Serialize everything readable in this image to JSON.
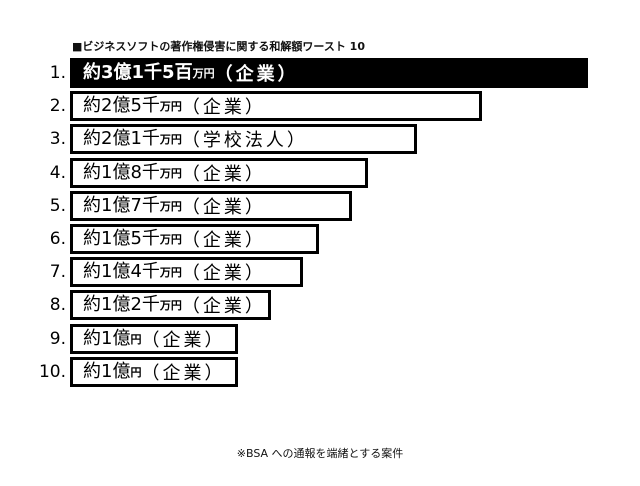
{
  "chart_data": {
    "type": "bar",
    "orientation": "horizontal",
    "title": "■ビジネスソフトの著作権侵害に関する和解額ワースト 10",
    "footnote": "※BSA への通報を端緒とする案件",
    "unit": "万円",
    "ranks": [
      "1.",
      "2.",
      "3.",
      "4.",
      "5.",
      "6.",
      "7.",
      "8.",
      "9.",
      "10."
    ],
    "values": [
      31500,
      25000,
      21000,
      18000,
      17000,
      15000,
      14000,
      12000,
      10000,
      10000
    ],
    "labels": [
      {
        "amount": "約3億1千5百",
        "unit": "万円",
        "category": "（企業）"
      },
      {
        "amount": "約2億5千",
        "unit": "万円",
        "category": "（企業）"
      },
      {
        "amount": "約2億1千",
        "unit": "万円",
        "category": "（学校法人）"
      },
      {
        "amount": "約1億8千",
        "unit": "万円",
        "category": "（企業）"
      },
      {
        "amount": "約1億7千",
        "unit": "万円",
        "category": "（企業）"
      },
      {
        "amount": "約1億5千",
        "unit": "万円",
        "category": "（企業）"
      },
      {
        "amount": "約1億4千",
        "unit": "万円",
        "category": "（企業）"
      },
      {
        "amount": "約1億2千",
        "unit": "万円",
        "category": "（企業）"
      },
      {
        "amount": "約1億",
        "unit": "円",
        "category": "（企業）"
      },
      {
        "amount": "約1億",
        "unit": "円",
        "category": "（企業）"
      }
    ],
    "highlight_color": "#000000",
    "bar_border_color": "#000000",
    "grid": false,
    "legend": "none"
  }
}
